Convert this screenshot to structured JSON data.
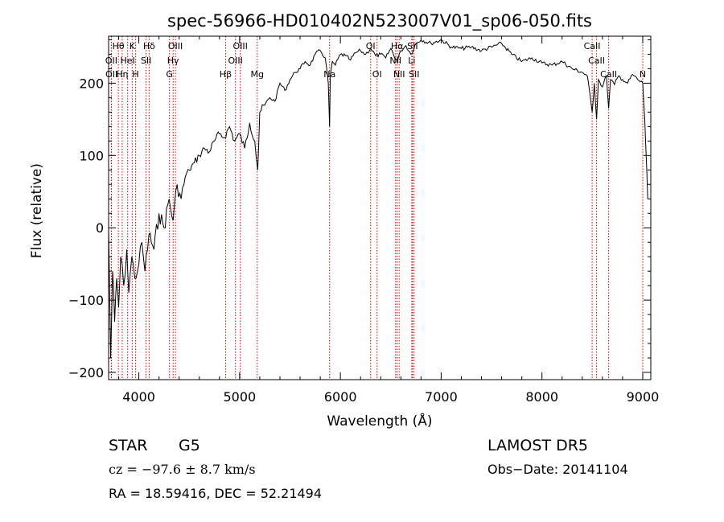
{
  "chart_data": {
    "type": "line",
    "title": "spec-56966-HD010402N523007V01_sp06-050.fits",
    "xlabel": "Wavelength (Å)",
    "ylabel": "Flux (relative)",
    "xlim": [
      3700,
      9080
    ],
    "ylim": [
      -210,
      265
    ],
    "xticks": [
      4000,
      5000,
      6000,
      7000,
      8000,
      9000
    ],
    "xtick_labels": [
      "4000",
      "5000",
      "6000",
      "7000",
      "8000",
      "9000"
    ],
    "yticks": [
      -200,
      -100,
      0,
      100,
      200
    ],
    "ytick_labels": [
      "−200",
      "−100",
      "0",
      "100",
      "200"
    ],
    "grid": false,
    "series": [
      {
        "x": [
          3700,
          3720,
          3740,
          3760,
          3780,
          3800,
          3820,
          3850,
          3880,
          3900,
          3930,
          3960,
          4000,
          4030,
          4060,
          4100,
          4150,
          4200,
          4250,
          4300,
          4340,
          4380,
          4420,
          4460,
          4500,
          4550,
          4600,
          4650,
          4700,
          4750,
          4800,
          4850,
          4900,
          4950,
          5000,
          5050,
          5100,
          5150,
          5180,
          5200,
          5250,
          5300,
          5350,
          5400,
          5450,
          5500,
          5550,
          5600,
          5650,
          5700,
          5750,
          5800,
          5850,
          5880,
          5893,
          5900,
          5920,
          5950,
          6000,
          6050,
          6100,
          6150,
          6200,
          6250,
          6300,
          6350,
          6400,
          6450,
          6500,
          6563,
          6600,
          6650,
          6700,
          6750,
          6800,
          6900,
          7000,
          7100,
          7200,
          7300,
          7400,
          7500,
          7600,
          7700,
          7800,
          7900,
          8000,
          8100,
          8200,
          8300,
          8400,
          8450,
          8498,
          8520,
          8542,
          8560,
          8600,
          8640,
          8662,
          8680,
          8720,
          8760,
          8800,
          8850,
          8900,
          8950,
          9000,
          9020,
          9040,
          9050
        ],
        "y": [
          0,
          -180,
          -60,
          -130,
          -70,
          -110,
          -40,
          -80,
          -30,
          -90,
          -40,
          -70,
          -50,
          -20,
          -60,
          -10,
          -30,
          20,
          0,
          40,
          10,
          60,
          40,
          70,
          80,
          90,
          100,
          110,
          105,
          120,
          130,
          125,
          140,
          120,
          130,
          110,
          145,
          120,
          80,
          160,
          170,
          180,
          175,
          200,
          190,
          205,
          215,
          220,
          230,
          225,
          240,
          245,
          235,
          200,
          140,
          210,
          230,
          225,
          240,
          238,
          232,
          242,
          245,
          240,
          248,
          238,
          240,
          235,
          248,
          230,
          245,
          252,
          240,
          255,
          260,
          255,
          260,
          250,
          248,
          250,
          245,
          250,
          255,
          240,
          230,
          235,
          228,
          225,
          230,
          220,
          215,
          210,
          160,
          200,
          150,
          205,
          195,
          210,
          165,
          205,
          198,
          210,
          205,
          200,
          212,
          205,
          200,
          150,
          80,
          40
        ]
      }
    ],
    "line_markers": [
      {
        "label": "Hθ",
        "x": 3797,
        "row": 1
      },
      {
        "label": "K",
        "x": 3934,
        "row": 1
      },
      {
        "label": "Hδ",
        "x": 4102,
        "row": 1
      },
      {
        "label": "OIII",
        "x": 4363,
        "row": 1
      },
      {
        "label": "OIII",
        "x": 5007,
        "row": 1
      },
      {
        "label": "OI",
        "x": 6300,
        "row": 1
      },
      {
        "label": "Hα",
        "x": 6563,
        "row": 1
      },
      {
        "label": "SII",
        "x": 6716,
        "row": 1
      },
      {
        "label": "CaII",
        "x": 8498,
        "row": 1
      },
      {
        "label": "OII",
        "x": 3727,
        "row": 2
      },
      {
        "label": "HeI",
        "x": 3889,
        "row": 2
      },
      {
        "label": "SII",
        "x": 4072,
        "row": 2
      },
      {
        "label": "Hγ",
        "x": 4340,
        "row": 2
      },
      {
        "label": "OIII",
        "x": 4959,
        "row": 2
      },
      {
        "label": "NII",
        "x": 6548,
        "row": 2
      },
      {
        "label": "Li",
        "x": 6708,
        "row": 2
      },
      {
        "label": "CaII",
        "x": 8542,
        "row": 2
      },
      {
        "label": "OII",
        "x": 3729,
        "row": 3
      },
      {
        "label": "Hη",
        "x": 3835,
        "row": 3
      },
      {
        "label": "H",
        "x": 3968,
        "row": 3
      },
      {
        "label": "G",
        "x": 4304,
        "row": 3
      },
      {
        "label": "Hβ",
        "x": 4861,
        "row": 3
      },
      {
        "label": "Mg",
        "x": 5175,
        "row": 3
      },
      {
        "label": "Na",
        "x": 5893,
        "row": 3
      },
      {
        "label": "OI",
        "x": 6364,
        "row": 3
      },
      {
        "label": "NII",
        "x": 6583,
        "row": 3
      },
      {
        "label": "SII",
        "x": 6731,
        "row": 3
      },
      {
        "label": "CaII",
        "x": 8662,
        "row": 3
      },
      {
        "label": "N",
        "x": 9000,
        "row": 3
      }
    ],
    "marker_color": "#cc0000"
  },
  "info": {
    "class": "STAR",
    "subclass": "G5",
    "survey": "LAMOST  DR5",
    "cz": "cz = −97.6 ± 8.7 km/s",
    "obs_date": "Obs−Date: 20141104",
    "coords": "RA =  18.59416, DEC =  52.21494"
  }
}
